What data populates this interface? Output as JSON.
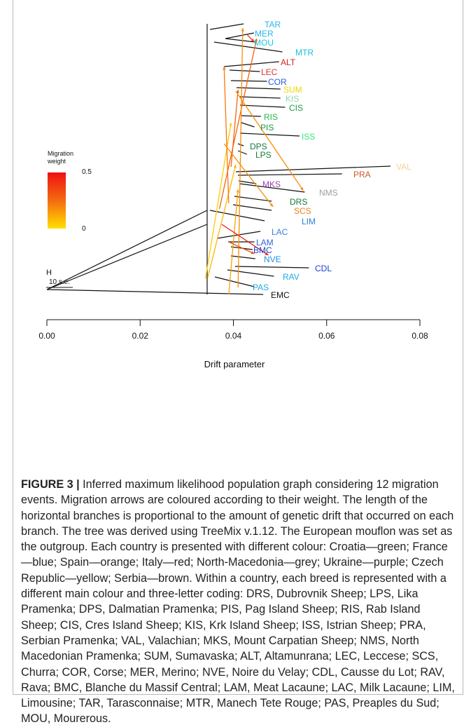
{
  "figure": {
    "caption_label": "FIGURE 3 |",
    "caption_text": " Inferred maximum likelihood population graph considering 12 migration events. Migration arrows are coloured according to their weight. The length of the horizontal branches is proportional to the amount of genetic drift that occurred on each branch. The tree was derived using TreeMix v.1.12. The European mouflon was set as the outgroup. Each country is presented with different colour: Croatia—green; France—blue; Spain—orange; Italy—red; North-Macedonia—grey; Ukraine—purple; Czech Republic—yellow; Serbia—brown. Within a country, each breed is represented with a different main colour and three-letter coding: DRS, Dubrovnik Sheep; LPS, Lika Pramenka; DPS, Dalmatian Pramenka; PIS, Pag Island Sheep; RIS, Rab Island Sheep; CIS, Cres Island Sheep; KIS, Krk Island Sheep; ISS, Istrian Sheep; PRA, Serbian Pramenka; VAL, Valachian; MKS, Mount Carpatian Sheep; NMS, North Macedonian Pramenka; SUM, Sumavaska; ALT, Altamunrana; LEC, Leccese; SCS, Churra; COR, Corse; MER, Merino; NVE, Noire du Velay; CDL, Causse du Lot; RAV, Rava; BMC, Blanche du Massif Central; LAM, Meat Lacaune; LAC, Milk Lacaune; LIM, Limousine; TAR, Tarasconnaise; MTR, Manech Tete Rouge; PAS, Preaples du Sud; MOU, Mourerous."
  },
  "chart_data": {
    "type": "tree",
    "xlabel": "Drift parameter",
    "xlim": [
      0.0,
      0.08
    ],
    "xticks": [
      "0.00",
      "0.02",
      "0.04",
      "0.06",
      "0.08"
    ],
    "root_label": "H",
    "scale_label": "10 s.e.",
    "legend": {
      "title_line1": "Migration",
      "title_line2": "weight",
      "max_label": "0.5",
      "min_label": "0",
      "color_high": "#ee1111",
      "color_low": "#ffe000"
    },
    "tips": [
      {
        "label": "TAR",
        "drift": 0.0422,
        "color": "#29b6e8"
      },
      {
        "label": "MER",
        "drift": 0.0444,
        "color": "#29b6e8"
      },
      {
        "label": "MOU",
        "drift": 0.0447,
        "color": "#18c8e6"
      },
      {
        "label": "MTR",
        "drift": 0.0505,
        "color": "#18c0e0"
      },
      {
        "label": "ALT",
        "drift": 0.0498,
        "color": "#d81c1c"
      },
      {
        "label": "LEC",
        "drift": 0.0457,
        "color": "#e23030"
      },
      {
        "label": "COR",
        "drift": 0.0472,
        "color": "#2060d8"
      },
      {
        "label": "SUM",
        "drift": 0.0501,
        "color": "#f0d400"
      },
      {
        "label": "KIS",
        "drift": 0.0501,
        "color": "#8fd8a8"
      },
      {
        "label": "CIS",
        "drift": 0.0511,
        "color": "#1c9a4c"
      },
      {
        "label": "RIS",
        "drift": 0.0459,
        "color": "#28b848"
      },
      {
        "label": "PIS",
        "drift": 0.0445,
        "color": "#1c9a3c"
      },
      {
        "label": "ISS",
        "drift": 0.0542,
        "color": "#2ee878"
      },
      {
        "label": "DPS",
        "drift": 0.0422,
        "color": "#157a3a"
      },
      {
        "label": "LPS",
        "drift": 0.0429,
        "color": "#157a3a"
      },
      {
        "label": "VAL",
        "drift": 0.0737,
        "color": "#f8d098"
      },
      {
        "label": "PRA",
        "drift": 0.0633,
        "color": "#c4582e"
      },
      {
        "label": "MKS",
        "drift": 0.0449,
        "color": "#a040b0"
      },
      {
        "label": "NMS",
        "drift": 0.0553,
        "color": "#a0a0a0"
      },
      {
        "label": "DRS",
        "drift": 0.0482,
        "color": "#157a3a"
      },
      {
        "label": "SCS",
        "drift": 0.0482,
        "color": "#f08018"
      },
      {
        "label": "LIM",
        "drift": 0.0467,
        "color": "#2c7fd8"
      },
      {
        "label": "LAC",
        "drift": 0.0458,
        "color": "#3a80e0"
      },
      {
        "label": "LAM",
        "drift": 0.0445,
        "color": "#2b66d8"
      },
      {
        "label": "BMC",
        "drift": 0.0441,
        "color": "#1e44c8"
      },
      {
        "label": "NVE",
        "drift": 0.0447,
        "color": "#1e90e8"
      },
      {
        "label": "CDL",
        "drift": 0.0562,
        "color": "#1b40d0"
      },
      {
        "label": "RAV",
        "drift": 0.0487,
        "color": "#22a8e8"
      },
      {
        "label": "PAS",
        "drift": 0.0445,
        "color": "#22a8e8"
      },
      {
        "label": "EMC",
        "drift": 0.0464,
        "color": "#111111"
      }
    ],
    "migration_edges": [
      {
        "from": [
          0.034,
          398
        ],
        "to": [
          0.0395,
          175
        ],
        "weight": 0.05
      },
      {
        "from": [
          0.0345,
          396
        ],
        "to": [
          0.0405,
          235
        ],
        "weight": 0.1
      },
      {
        "from": [
          0.037,
          298
        ],
        "to": [
          0.045,
          55
        ],
        "weight": 0.3
      },
      {
        "from": [
          0.039,
          290
        ],
        "to": [
          0.038,
          95
        ],
        "weight": 0.25
      },
      {
        "from": [
          0.041,
          410
        ],
        "to": [
          0.042,
          40
        ],
        "weight": 0.2
      },
      {
        "from": [
          0.0395,
          238
        ],
        "to": [
          0.041,
          128
        ],
        "weight": 0.3
      },
      {
        "from": [
          0.0405,
          130
        ],
        "to": [
          0.055,
          272
        ],
        "weight": 0.2
      },
      {
        "from": [
          0.038,
          205
        ],
        "to": [
          0.0485,
          295
        ],
        "weight": 0.2
      },
      {
        "from": [
          0.039,
          420
        ],
        "to": [
          0.041,
          270
        ],
        "weight": 0.15
      },
      {
        "from": [
          0.0375,
          320
        ],
        "to": [
          0.0475,
          364
        ],
        "weight": 0.48
      },
      {
        "from": [
          0.039,
          345
        ],
        "to": [
          0.0445,
          362
        ],
        "weight": 0.35
      },
      {
        "from": [
          0.043,
          50
        ],
        "to": [
          0.0445,
          60
        ],
        "weight": 0.4
      }
    ]
  }
}
